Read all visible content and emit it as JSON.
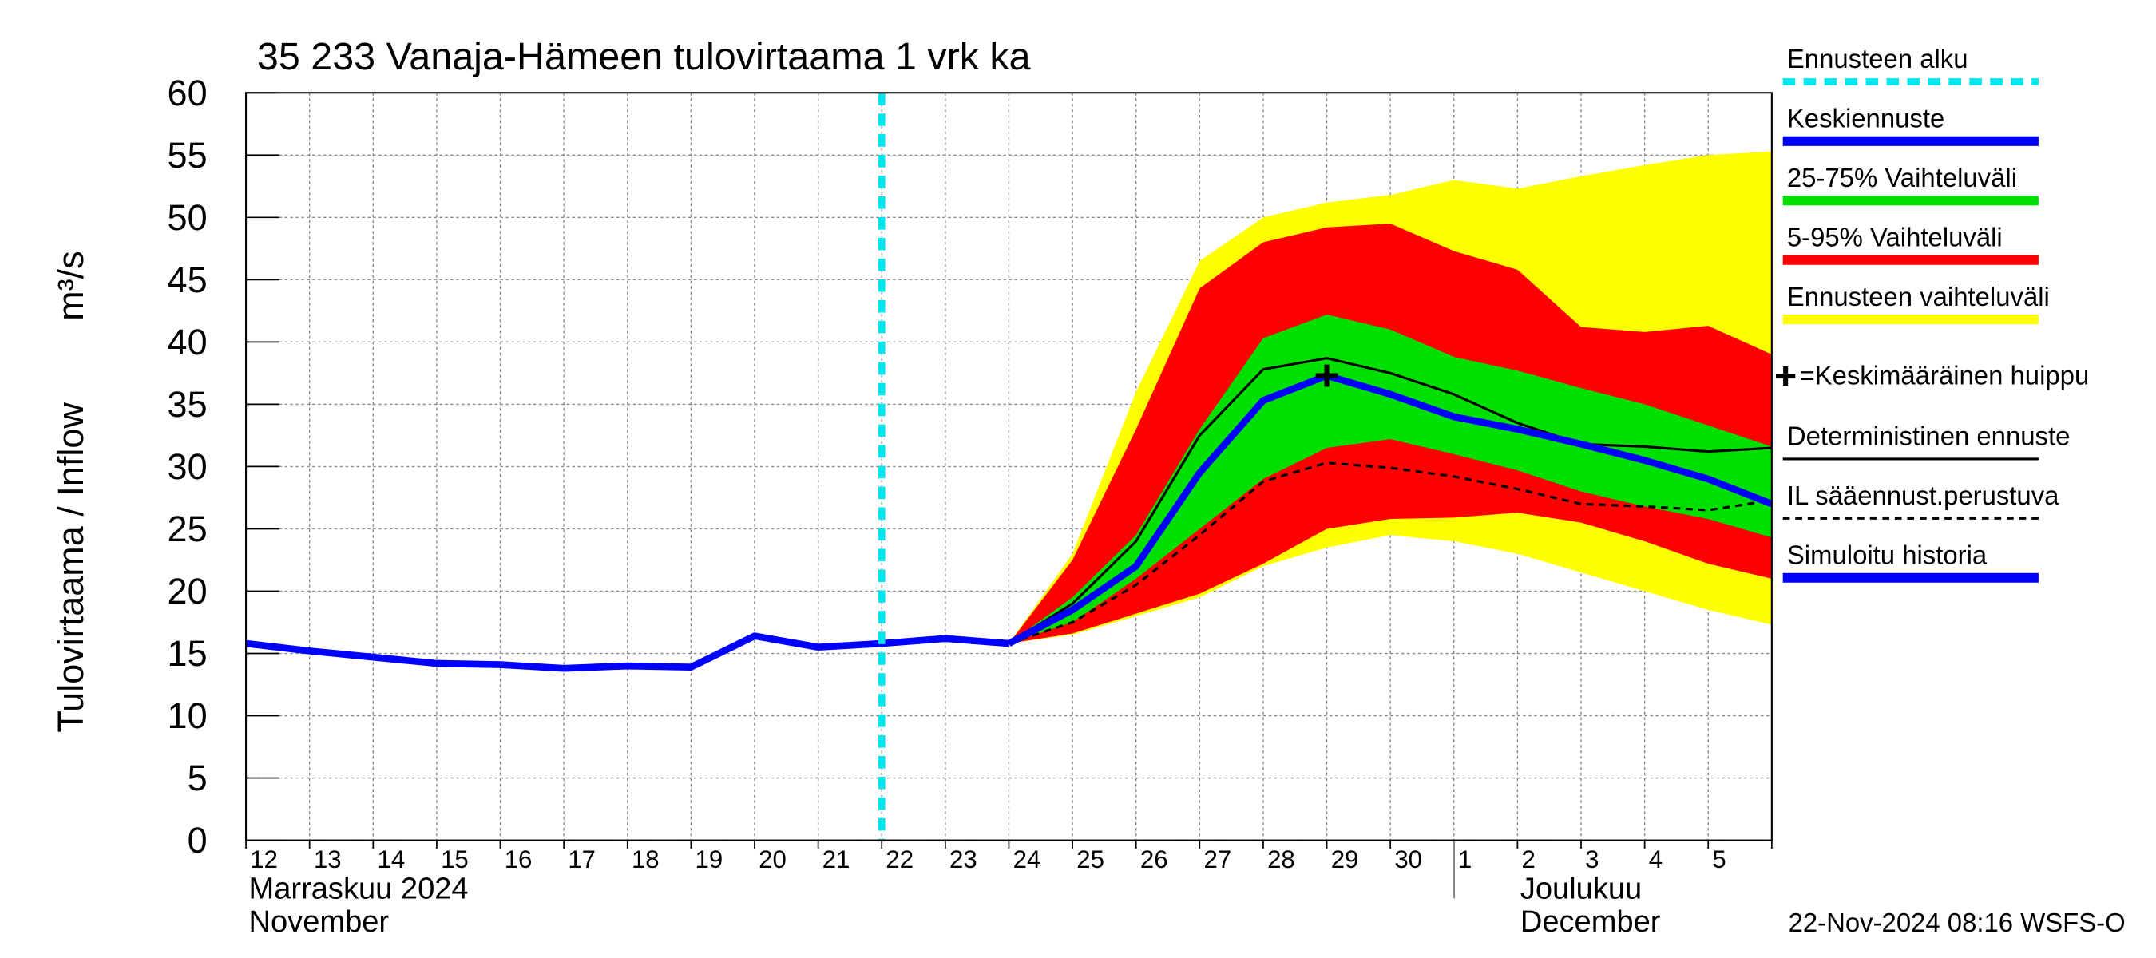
{
  "chart_data": {
    "type": "line",
    "title": "35 233 Vanaja-Hämeen tulovirtaama 1 vrk ka",
    "y_label": "Tulovirtaama / Inflow",
    "y_unit": "m³/s",
    "categories": [
      "12",
      "13",
      "14",
      "15",
      "16",
      "17",
      "18",
      "19",
      "20",
      "21",
      "22",
      "23",
      "24",
      "25",
      "26",
      "27",
      "28",
      "29",
      "30",
      "1",
      "2",
      "3",
      "4",
      "5",
      null
    ],
    "month_labels": [
      {
        "index": 0,
        "lines": [
          "Marraskuu 2024",
          "November"
        ]
      },
      {
        "index": 19,
        "lines": [
          "Joulukuu",
          "December"
        ]
      }
    ],
    "footer": "22-Nov-2024 08:16 WSFS-O",
    "ylim": [
      0,
      60
    ],
    "yticks": [
      0,
      5,
      10,
      15,
      20,
      25,
      30,
      35,
      40,
      45,
      50,
      55,
      60
    ],
    "grid": true,
    "series": [
      {
        "name": "Ennusteen alku",
        "kind": "vline",
        "color": "#00e5ee",
        "x": 10
      },
      {
        "name": "Keskiennuste",
        "kind": "line",
        "style": "thick",
        "color": "#0000ff",
        "values": [
          null,
          null,
          null,
          null,
          null,
          null,
          null,
          null,
          null,
          null,
          null,
          null,
          15.8,
          18.5,
          22,
          29.5,
          35.3,
          37.3,
          35.8,
          34,
          33,
          31.8,
          30.5,
          29,
          27
        ]
      },
      {
        "name": "25-75% Vaihteluväli",
        "kind": "band",
        "color": "#00e000",
        "upper": [
          null,
          null,
          null,
          null,
          null,
          null,
          null,
          null,
          null,
          null,
          null,
          null,
          15.8,
          19.5,
          24.5,
          33,
          40.3,
          42.2,
          41,
          38.8,
          37.7,
          36.3,
          35,
          33.3,
          31.6
        ],
        "lower": [
          null,
          null,
          null,
          null,
          null,
          null,
          null,
          null,
          null,
          null,
          null,
          null,
          15.8,
          17.5,
          21,
          25,
          29,
          31.5,
          32.2,
          31,
          29.7,
          28,
          26.8,
          25.8,
          24.3
        ]
      },
      {
        "name": "5-95% Vaihteluväli",
        "kind": "band",
        "color": "#ff0000",
        "upper": [
          null,
          null,
          null,
          null,
          null,
          null,
          null,
          null,
          null,
          null,
          null,
          null,
          15.8,
          22.5,
          33,
          44.3,
          48,
          49.2,
          49.5,
          47.3,
          45.8,
          41.2,
          40.8,
          41.3,
          39
        ],
        "lower": [
          null,
          null,
          null,
          null,
          null,
          null,
          null,
          null,
          null,
          null,
          null,
          null,
          15.8,
          16.6,
          18.2,
          19.8,
          22.2,
          25,
          25.8,
          25.9,
          26.3,
          25.5,
          24,
          22.2,
          21
        ]
      },
      {
        "name": "Ennusteen vaihteluväli",
        "kind": "band",
        "color": "#ffff00",
        "upper": [
          null,
          null,
          null,
          null,
          null,
          null,
          null,
          null,
          null,
          null,
          null,
          null,
          15.8,
          23,
          36,
          46.5,
          50,
          51.2,
          51.8,
          53,
          52.3,
          53.3,
          54.2,
          55,
          55.3
        ],
        "lower": [
          null,
          null,
          null,
          null,
          null,
          null,
          null,
          null,
          null,
          null,
          null,
          null,
          15.8,
          16.5,
          18,
          19.5,
          22,
          23.5,
          24.5,
          24,
          23,
          21.5,
          20,
          18.5,
          17.3
        ]
      },
      {
        "name": "=Keskimääräinen huippu",
        "kind": "point",
        "color": "#000000",
        "x": 17,
        "y": 37.3
      },
      {
        "name": "Deterministinen ennuste",
        "kind": "line",
        "style": "thin",
        "color": "#000000",
        "values": [
          null,
          null,
          null,
          null,
          null,
          null,
          null,
          null,
          null,
          null,
          null,
          null,
          15.8,
          19,
          24,
          32.5,
          37.8,
          38.7,
          37.5,
          35.8,
          33.5,
          31.8,
          31.6,
          31.2,
          31.5
        ]
      },
      {
        "name": "IL sääennust.perustuva",
        "kind": "line",
        "style": "dashed",
        "color": "#000000",
        "values": [
          null,
          null,
          null,
          null,
          null,
          null,
          null,
          null,
          null,
          null,
          null,
          null,
          15.8,
          17.5,
          20.5,
          24.5,
          28.8,
          30.3,
          29.9,
          29.2,
          28.2,
          27,
          26.8,
          26.5,
          27.3
        ]
      },
      {
        "name": "Simuloitu historia",
        "kind": "line",
        "style": "thick",
        "color": "#0000ff",
        "values": [
          15.8,
          15.2,
          14.7,
          14.2,
          14.1,
          13.8,
          14.0,
          13.9,
          16.4,
          15.5,
          15.8,
          16.2,
          15.8,
          null,
          null,
          null,
          null,
          null,
          null,
          null,
          null,
          null,
          null,
          null,
          null
        ]
      }
    ]
  }
}
